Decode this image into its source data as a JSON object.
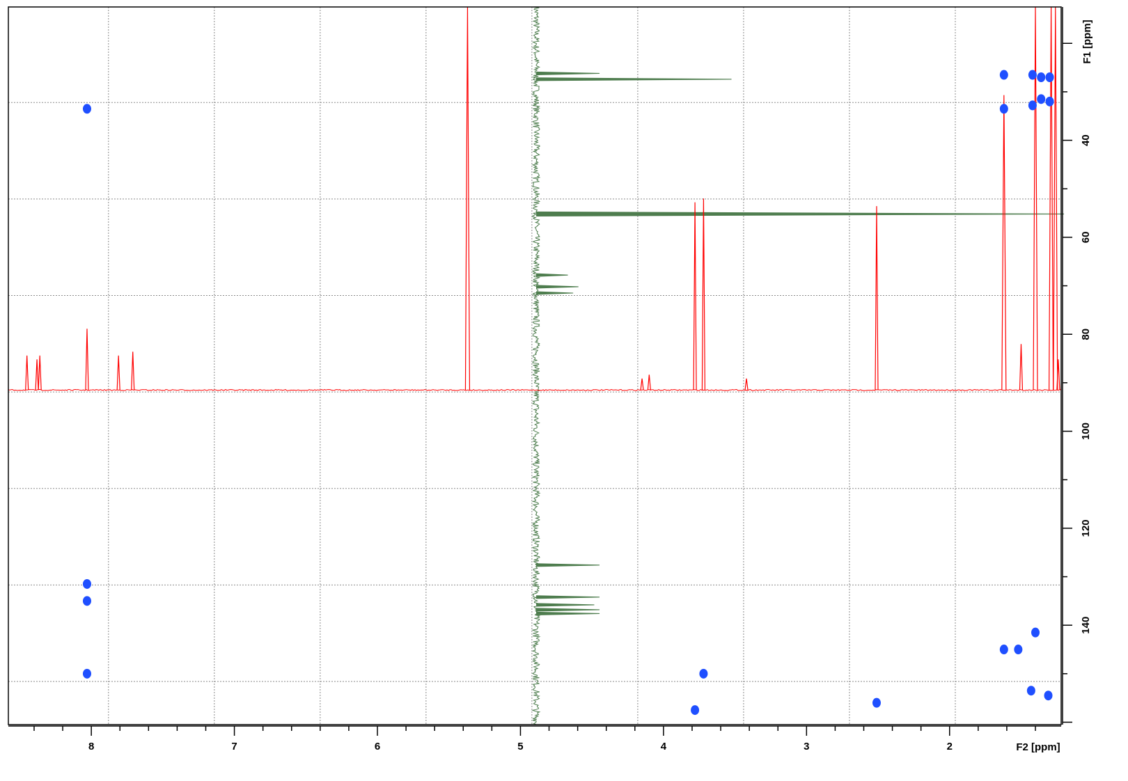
{
  "chart_data": {
    "type": "2d-nmr-spectrum",
    "x_axis": {
      "label": "F2 [ppm]",
      "range": [
        8.58,
        1.22
      ],
      "major_ticks": [
        8,
        7,
        6,
        5,
        4,
        3,
        2
      ],
      "tick_labels": [
        "8",
        "7",
        "6",
        "5",
        "4",
        "3",
        "2"
      ],
      "minor_step": 0.2,
      "grid_positions": [
        7.88,
        7.14,
        6.4,
        5.66,
        4.92,
        4.18,
        3.44,
        2.7,
        1.96
      ]
    },
    "y_axis": {
      "label": "F1 [ppm]",
      "range": [
        12.5,
        160.5
      ],
      "position": "right",
      "major_ticks": [
        40,
        60,
        80,
        100,
        120,
        140
      ],
      "tick_labels": [
        "40",
        "60",
        "80",
        "100",
        "120",
        "140"
      ],
      "minor_step": 10,
      "grid_positions": [
        32.2,
        52.1,
        72.0,
        91.9,
        111.8,
        131.7,
        151.6
      ]
    },
    "grid": true,
    "series": [
      {
        "kind": "cross-peaks",
        "color": "#1f4fff",
        "peaks": [
          {
            "f2": 8.03,
            "f1": 33.5
          },
          {
            "f2": 8.03,
            "f1": 131.5
          },
          {
            "f2": 8.03,
            "f1": 135.0
          },
          {
            "f2": 8.03,
            "f1": 150.0
          },
          {
            "f2": 3.78,
            "f1": 157.5
          },
          {
            "f2": 3.72,
            "f1": 150.0
          },
          {
            "f2": 2.51,
            "f1": 156.0
          },
          {
            "f2": 1.62,
            "f1": 26.5
          },
          {
            "f2": 1.62,
            "f1": 33.5
          },
          {
            "f2": 1.62,
            "f1": 145.0
          },
          {
            "f2": 1.52,
            "f1": 145.0
          },
          {
            "f2": 1.42,
            "f1": 26.5
          },
          {
            "f2": 1.42,
            "f1": 32.8
          },
          {
            "f2": 1.36,
            "f1": 27.0
          },
          {
            "f2": 1.36,
            "f1": 31.5
          },
          {
            "f2": 1.3,
            "f1": 27.0
          },
          {
            "f2": 1.3,
            "f1": 32.0
          },
          {
            "f2": 1.43,
            "f1": 153.5
          },
          {
            "f2": 1.31,
            "f1": 154.5
          },
          {
            "f2": 1.4,
            "f1": 141.5
          }
        ]
      },
      {
        "kind": "f2-projection-1H",
        "color": "#ff0000",
        "baseline_f1": 91.5,
        "peaks": [
          {
            "ppm": 8.45,
            "height": 0.09
          },
          {
            "ppm": 8.38,
            "height": 0.08
          },
          {
            "ppm": 8.36,
            "height": 0.09
          },
          {
            "ppm": 8.03,
            "height": 0.16
          },
          {
            "ppm": 7.81,
            "height": 0.09
          },
          {
            "ppm": 7.71,
            "height": 0.1
          },
          {
            "ppm": 5.37,
            "height": 1.0
          },
          {
            "ppm": 4.15,
            "height": 0.03
          },
          {
            "ppm": 4.1,
            "height": 0.04
          },
          {
            "ppm": 3.78,
            "height": 0.49
          },
          {
            "ppm": 3.72,
            "height": 0.5
          },
          {
            "ppm": 3.42,
            "height": 0.03
          },
          {
            "ppm": 2.51,
            "height": 0.48
          },
          {
            "ppm": 1.62,
            "height": 0.77
          },
          {
            "ppm": 1.5,
            "height": 0.12
          },
          {
            "ppm": 1.4,
            "height": 1.0
          },
          {
            "ppm": 1.29,
            "height": 1.0
          },
          {
            "ppm": 1.26,
            "height": 1.0
          },
          {
            "ppm": 1.24,
            "height": 0.08
          }
        ]
      },
      {
        "kind": "f1-projection-13C",
        "color": "#4e7d4e",
        "baseline_f2": 4.89,
        "peaks": [
          {
            "ppm": 26.2,
            "height": 0.12
          },
          {
            "ppm": 27.4,
            "height": 0.37
          },
          {
            "ppm": 55.2,
            "height": 1.0
          },
          {
            "ppm": 67.8,
            "height": 0.06
          },
          {
            "ppm": 70.2,
            "height": 0.08
          },
          {
            "ppm": 71.5,
            "height": 0.07
          },
          {
            "ppm": 127.6,
            "height": 0.12
          },
          {
            "ppm": 134.2,
            "height": 0.12
          },
          {
            "ppm": 135.8,
            "height": 0.11
          },
          {
            "ppm": 136.8,
            "height": 0.12
          },
          {
            "ppm": 137.6,
            "height": 0.12
          }
        ]
      }
    ]
  }
}
